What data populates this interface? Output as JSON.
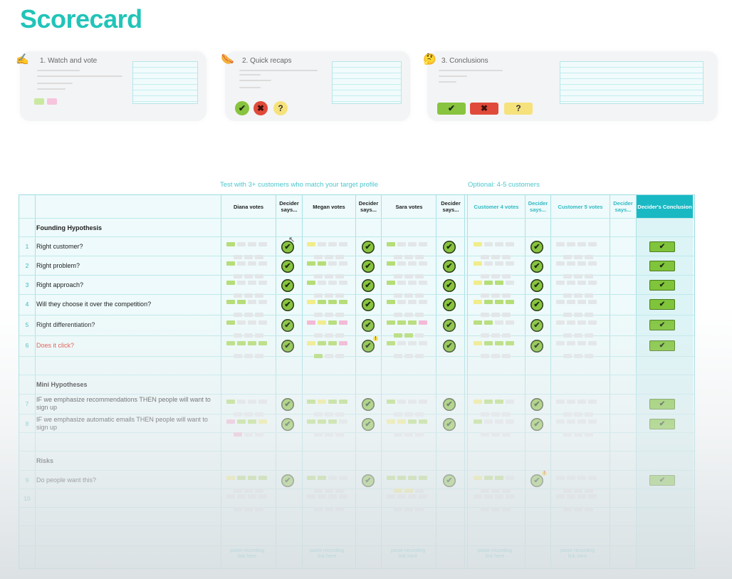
{
  "title": "Scorecard",
  "steps": [
    {
      "label": "1. Watch and vote",
      "emoji": "✍️"
    },
    {
      "label": "2. Quick recaps",
      "emoji": "🌭"
    },
    {
      "label": "3. Conclusions",
      "emoji": "🤔"
    }
  ],
  "step_symbols": {
    "yes": "✔",
    "no": "✖",
    "maybe": "?"
  },
  "captions": {
    "main": "Test with 3+ customers who match your target profile",
    "optional": "Optional: 4-5 customers"
  },
  "columns": [
    {
      "label": "Diana votes"
    },
    {
      "label": "Decider says..."
    },
    {
      "label": "Megan votes"
    },
    {
      "label": "Decider says..."
    },
    {
      "label": "Sara votes"
    },
    {
      "label": "Decider says..."
    },
    {
      "label": "Customer 4 votes"
    },
    {
      "label": "Decider says..."
    },
    {
      "label": "Customer 5 votes"
    },
    {
      "label": "Decider says..."
    },
    {
      "label": "Decider's Conclusion"
    }
  ],
  "sections": {
    "founding": "Founding Hypothesis",
    "mini": "Mini Hypotheses",
    "risks": "Risks"
  },
  "rows": [
    {
      "num": "1",
      "text": "Right customer?"
    },
    {
      "num": "2",
      "text": "Right problem?"
    },
    {
      "num": "3",
      "text": "Right approach?"
    },
    {
      "num": "4",
      "text": "Will they choose it over the competition?"
    },
    {
      "num": "5",
      "text": "Right differentiation?"
    },
    {
      "num": "6",
      "text": "Does it click?"
    },
    {
      "num": "7",
      "text": "IF we emphasize recommendations THEN people will want to sign up"
    },
    {
      "num": "8",
      "text": "IF we emphasize automatic emails THEN people will want to sign up"
    },
    {
      "num": "9",
      "text": "Do people want this?"
    },
    {
      "num": "10",
      "text": ""
    }
  ],
  "check_symbol": "✔",
  "paste_link": "paste recording link here",
  "colors": {
    "accent": "#21c4b8",
    "check_green": "#88c43f",
    "sticky_green": "#b6dd78",
    "sticky_yellow": "#f2ec8a",
    "sticky_pink": "#f4b6d4",
    "sticky_blank": "#e3e6e8",
    "no_red": "#e04a3a",
    "maybe_yellow": "#f6e27c"
  }
}
